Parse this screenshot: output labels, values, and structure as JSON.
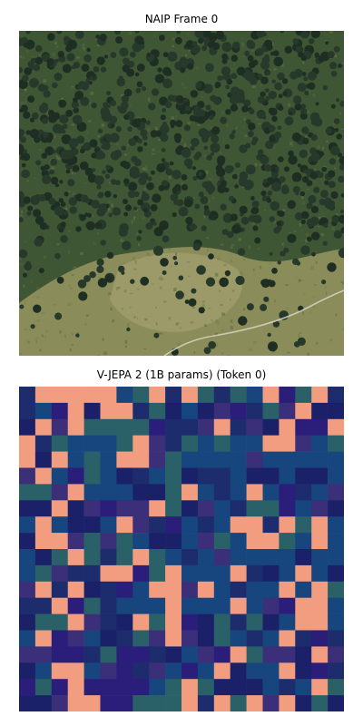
{
  "panels": {
    "top": {
      "title": "NAIP Frame 0"
    },
    "bottom": {
      "title": "V-JEPA 2 (1B params) (Token 0)"
    }
  },
  "colors": {
    "forest_dark": "#27392b",
    "forest_mid": "#3f5634",
    "meadow": "#8a8c5a",
    "meadow_light": "#a39f6d",
    "trail": "#d8d4c2",
    "token_salmon": "#f29c80",
    "token_teal": "#2a6068",
    "token_navy": "#1c2c6c",
    "token_deep_blue": "#1b2168",
    "token_purple": "#3a2f78",
    "token_indigo": "#2b1e7a",
    "token_sea_blue": "#17457e"
  }
}
